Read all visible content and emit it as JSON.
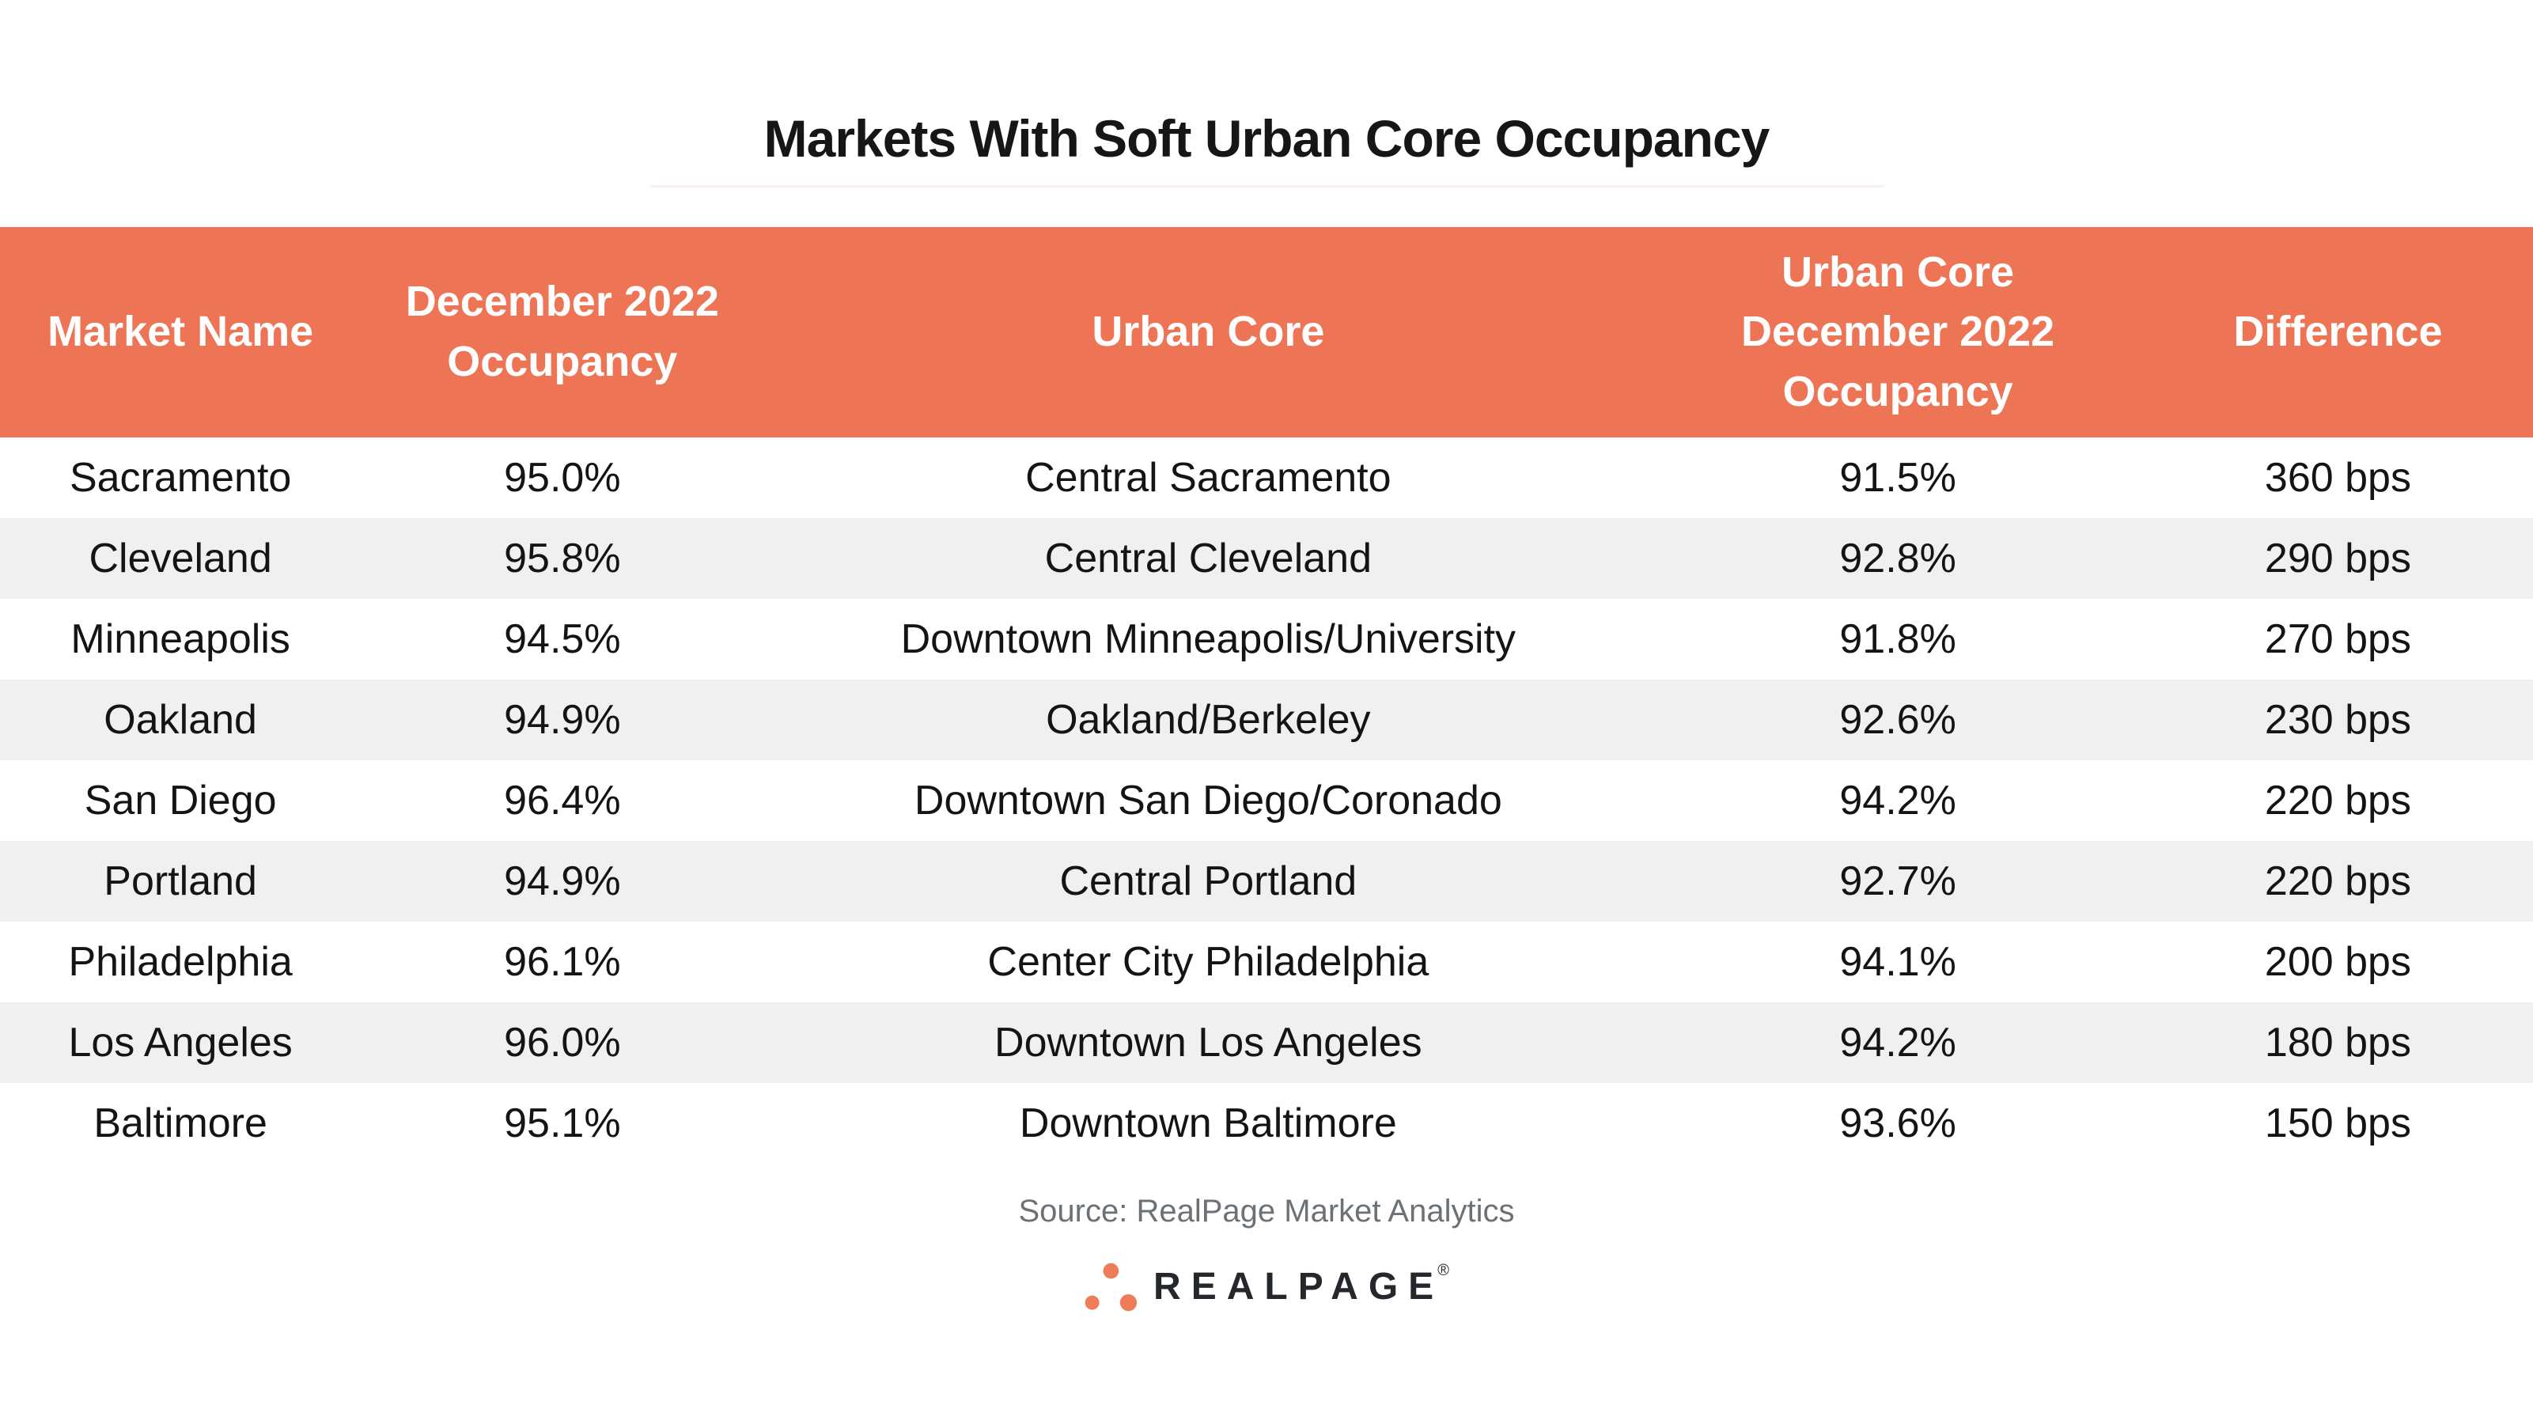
{
  "chart_data": {
    "type": "table",
    "title": "Markets With Soft Urban Core Occupancy",
    "columns": [
      "Market Name",
      "December 2022 Occupancy",
      "Urban Core",
      "Urban Core December 2022 Occupancy",
      "Difference"
    ],
    "rows": [
      [
        "Sacramento",
        "95.0%",
        "Central Sacramento",
        "91.5%",
        "360 bps"
      ],
      [
        "Cleveland",
        "95.8%",
        "Central Cleveland",
        "92.8%",
        "290 bps"
      ],
      [
        "Minneapolis",
        "94.5%",
        "Downtown Minneapolis/University",
        "91.8%",
        "270 bps"
      ],
      [
        "Oakland",
        "94.9%",
        "Oakland/Berkeley",
        "92.6%",
        "230 bps"
      ],
      [
        "San Diego",
        "96.4%",
        "Downtown San Diego/Coronado",
        "94.2%",
        "220 bps"
      ],
      [
        "Portland",
        "94.9%",
        "Central Portland",
        "92.7%",
        "220 bps"
      ],
      [
        "Philadelphia",
        "96.1%",
        "Center City Philadelphia",
        "94.1%",
        "200 bps"
      ],
      [
        "Los Angeles",
        "96.0%",
        "Downtown Los Angeles",
        "94.2%",
        "180 bps"
      ],
      [
        "Baltimore",
        "95.1%",
        "Downtown Baltimore",
        "93.6%",
        "150 bps"
      ]
    ],
    "source": "Source: RealPage Market Analytics",
    "layout": {
      "legend": "none",
      "grid": "off",
      "row_striping": "alternate",
      "header_position": "top"
    }
  },
  "logo": {
    "text": "REALPAGE",
    "registered": "®",
    "dots_icon": "realpage-three-dots"
  },
  "colors": {
    "header_bg": "#ED7454",
    "header_text": "#FFFFFF",
    "row_alt_bg": "#F0F0F0",
    "body_text": "#141414",
    "title_text": "#161616",
    "title_rule": "#FBEFEB",
    "source_text": "#6C7176",
    "logo_text": "#24272C",
    "logo_dots": "#EE7C59"
  }
}
